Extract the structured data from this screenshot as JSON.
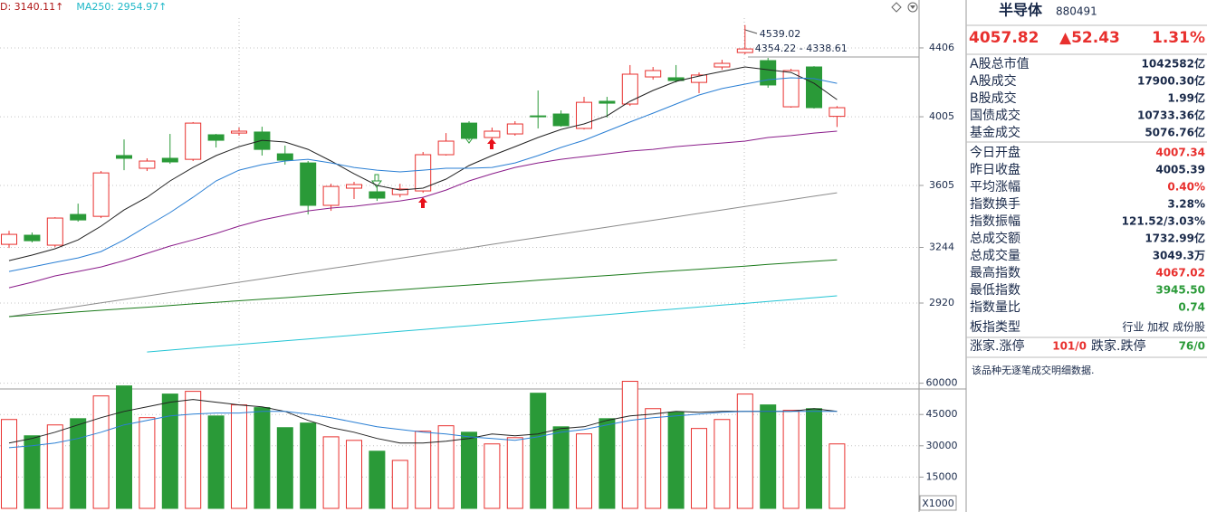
{
  "chart_data": [
    {
      "type": "candlestick",
      "header": [
        {
          "text": "D: 3140.11↑",
          "color": "#b01818"
        },
        {
          "text": "MA250: 2954.97↑",
          "color": "#1fb8c8"
        }
      ],
      "annotations": [
        "4539.02",
        "4354.22 - 4338.61"
      ],
      "up_color": "#e8302e",
      "down_color": "#2a9a38",
      "open": [
        3262,
        3315,
        3257,
        3436,
        3425,
        3779,
        3705,
        3763,
        3757,
        3900,
        3910,
        3916,
        3789,
        3736,
        3489,
        3589,
        3568,
        3552,
        3573,
        3784,
        3968,
        3884,
        3905,
        4010,
        4021,
        3937,
        4095,
        4079,
        4237,
        4232,
        4205,
        4295,
        4379,
        4332,
        4063,
        4295,
        4007.34
      ],
      "high": [
        3341,
        3331,
        3420,
        3499,
        3689,
        3873,
        3763,
        3905,
        3974,
        3905,
        3942,
        3947,
        3837,
        3747,
        3615,
        3626,
        3599,
        3615,
        3800,
        3910,
        3979,
        3942,
        3979,
        4158,
        4042,
        4121,
        4121,
        4306,
        4295,
        4306,
        4263,
        4337,
        4539.02,
        4348,
        4284,
        4300,
        4067.02
      ],
      "low": [
        3241,
        3273,
        3246,
        3394,
        3415,
        3694,
        3689,
        3731,
        3747,
        3826,
        3895,
        3779,
        3726,
        3436,
        3457,
        3526,
        3515,
        3536,
        3562,
        3779,
        3868,
        3868,
        3895,
        3937,
        3947,
        3931,
        4000,
        4068,
        4221,
        4205,
        4142,
        4279,
        4369,
        4174,
        4058,
        4053,
        3945.5
      ],
      "close": [
        3320,
        3283,
        3415,
        3404,
        3678,
        3763,
        3747,
        3742,
        3968,
        3868,
        3921,
        3815,
        3752,
        3489,
        3599,
        3610,
        3531,
        3584,
        3784,
        3863,
        3879,
        3921,
        3963,
        4005,
        3953,
        4089,
        4084,
        4253,
        4274,
        4216,
        4248,
        4316,
        4400,
        4190,
        4274,
        4058,
        4057.82
      ],
      "lines": [
        {
          "color": "#222222",
          "values": [
            3167,
            3199,
            3236,
            3288,
            3368,
            3462,
            3536,
            3631,
            3710,
            3779,
            3831,
            3868,
            3858,
            3815,
            3747,
            3673,
            3605,
            3578,
            3589,
            3642,
            3721,
            3779,
            3831,
            3884,
            3931,
            3963,
            4010,
            4095,
            4158,
            4211,
            4242,
            4269,
            4295,
            4279,
            4263,
            4200,
            4105
          ]
        },
        {
          "color": "#2a7fd4",
          "values": [
            3104,
            3130,
            3157,
            3183,
            3220,
            3288,
            3368,
            3447,
            3536,
            3631,
            3694,
            3726,
            3747,
            3757,
            3736,
            3710,
            3694,
            3684,
            3694,
            3705,
            3705,
            3710,
            3736,
            3779,
            3826,
            3868,
            3921,
            3974,
            4026,
            4079,
            4132,
            4169,
            4195,
            4221,
            4232,
            4227,
            4200
          ]
        },
        {
          "color": "#8a1c8a",
          "values": [
            3009,
            3041,
            3078,
            3104,
            3130,
            3167,
            3209,
            3252,
            3288,
            3325,
            3368,
            3404,
            3431,
            3457,
            3473,
            3483,
            3499,
            3515,
            3536,
            3578,
            3631,
            3673,
            3710,
            3736,
            3757,
            3773,
            3789,
            3805,
            3815,
            3831,
            3842,
            3852,
            3863,
            3884,
            3895,
            3910,
            3921
          ]
        },
        {
          "color": "#8c8c8c",
          "values": [
            2841,
            2861,
            2881,
            2901,
            2921,
            2941,
            2961,
            2981,
            3001,
            3021,
            3041,
            3061,
            3081,
            3101,
            3121,
            3141,
            3161,
            3181,
            3201,
            3221,
            3241,
            3262,
            3282,
            3302,
            3322,
            3342,
            3362,
            3382,
            3402,
            3422,
            3442,
            3462,
            3482,
            3502,
            3522,
            3542,
            3562
          ]
        },
        {
          "color": "#1a7a1a",
          "values": [
            2841,
            2850,
            2859,
            2869,
            2878,
            2887,
            2896,
            2905,
            2915,
            2924,
            2933,
            2942,
            2951,
            2961,
            2970,
            2979,
            2988,
            2997,
            3007,
            3016,
            3025,
            3034,
            3043,
            3053,
            3062,
            3071,
            3080,
            3089,
            3099,
            3108,
            3117,
            3126,
            3135,
            3145,
            3154,
            3163,
            3172
          ]
        },
        {
          "color": "#22c4d4",
          "values": [
            null,
            null,
            null,
            null,
            null,
            null,
            2635,
            2646,
            2657,
            2668,
            2679,
            2690,
            2700,
            2711,
            2722,
            2733,
            2744,
            2755,
            2766,
            2777,
            2788,
            2799,
            2809,
            2820,
            2831,
            2842,
            2853,
            2864,
            2875,
            2886,
            2897,
            2908,
            2918,
            2929,
            2940,
            2951,
            2962
          ]
        }
      ],
      "ylim": [
        2430,
        4685
      ],
      "yticks": [
        2920,
        3244,
        3605,
        4005,
        4406
      ],
      "grid": true
    },
    {
      "type": "bar",
      "values": [
        42600,
        34800,
        40000,
        43000,
        53900,
        58700,
        43500,
        54800,
        56100,
        44300,
        49600,
        48300,
        38700,
        40900,
        34300,
        32600,
        27400,
        23000,
        37000,
        39600,
        36500,
        30900,
        33900,
        55200,
        39100,
        35700,
        43000,
        60900,
        47800,
        46100,
        38300,
        42600,
        54800,
        49600,
        47000,
        47800,
        30900
      ],
      "lines": [
        {
          "color": "#222222",
          "values": [
            31300,
            33500,
            36500,
            40000,
            43500,
            46500,
            48700,
            50900,
            52200,
            50900,
            49600,
            48700,
            46500,
            42200,
            38700,
            36500,
            33500,
            31300,
            31300,
            32200,
            33500,
            35700,
            34800,
            35700,
            38300,
            39100,
            42200,
            44300,
            45200,
            46500,
            46100,
            46500,
            46500,
            46500,
            46500,
            47800,
            46500
          ]
        },
        {
          "color": "#2a7fd4",
          "values": [
            29100,
            30000,
            31300,
            33500,
            36500,
            40000,
            42200,
            44300,
            45200,
            45700,
            45700,
            46500,
            46500,
            45200,
            43500,
            41300,
            39100,
            37800,
            36500,
            35700,
            34300,
            33500,
            32600,
            34300,
            36500,
            37800,
            40000,
            42200,
            43500,
            44300,
            45200,
            46100,
            46500,
            46500,
            46500,
            46500,
            46500
          ]
        }
      ],
      "unit_label": "X1000",
      "ylim": [
        0,
        62000
      ],
      "yticks": [
        15000,
        30000,
        45000,
        60000
      ],
      "grid": true
    }
  ],
  "panel": {
    "title": "半导体",
    "code": "880491",
    "price": "4057.82",
    "change": "▲52.43",
    "change_pct": "1.31%",
    "rows": [
      {
        "label": "A股总市值",
        "value": "1042582亿"
      },
      {
        "label": "A股成交",
        "value": "17900.30亿"
      },
      {
        "label": "B股成交",
        "value": "1.99亿"
      },
      {
        "label": "国债成交",
        "value": "10733.36亿"
      },
      {
        "label": "基金成交",
        "value": "5076.76亿"
      },
      {
        "label": "今日开盘",
        "value": "4007.34",
        "color": "#e8302e"
      },
      {
        "label": "昨日收盘",
        "value": "4005.39"
      },
      {
        "label": "平均涨幅",
        "value": "0.40%",
        "color": "#e8302e"
      },
      {
        "label": "指数换手",
        "value": "3.28%"
      },
      {
        "label": "指数振幅",
        "value": "121.52/3.03%"
      },
      {
        "label": "总成交额",
        "value": "1732.99亿"
      },
      {
        "label": "总成交量",
        "value": "3049.3万"
      },
      {
        "label": "最高指数",
        "value": "4067.02",
        "color": "#e8302e"
      },
      {
        "label": "最低指数",
        "value": "3945.50",
        "color": "#2a9a38"
      },
      {
        "label": "指数量比",
        "value": "0.74",
        "color": "#2a9a38"
      }
    ],
    "board": {
      "label": "板指类型",
      "value": "行业 加权 成份股"
    },
    "breadth": [
      "涨家.涨停",
      "101/0",
      "跌家.跌停",
      "76/0"
    ],
    "note": "该品种无逐笔成交明细数据."
  }
}
